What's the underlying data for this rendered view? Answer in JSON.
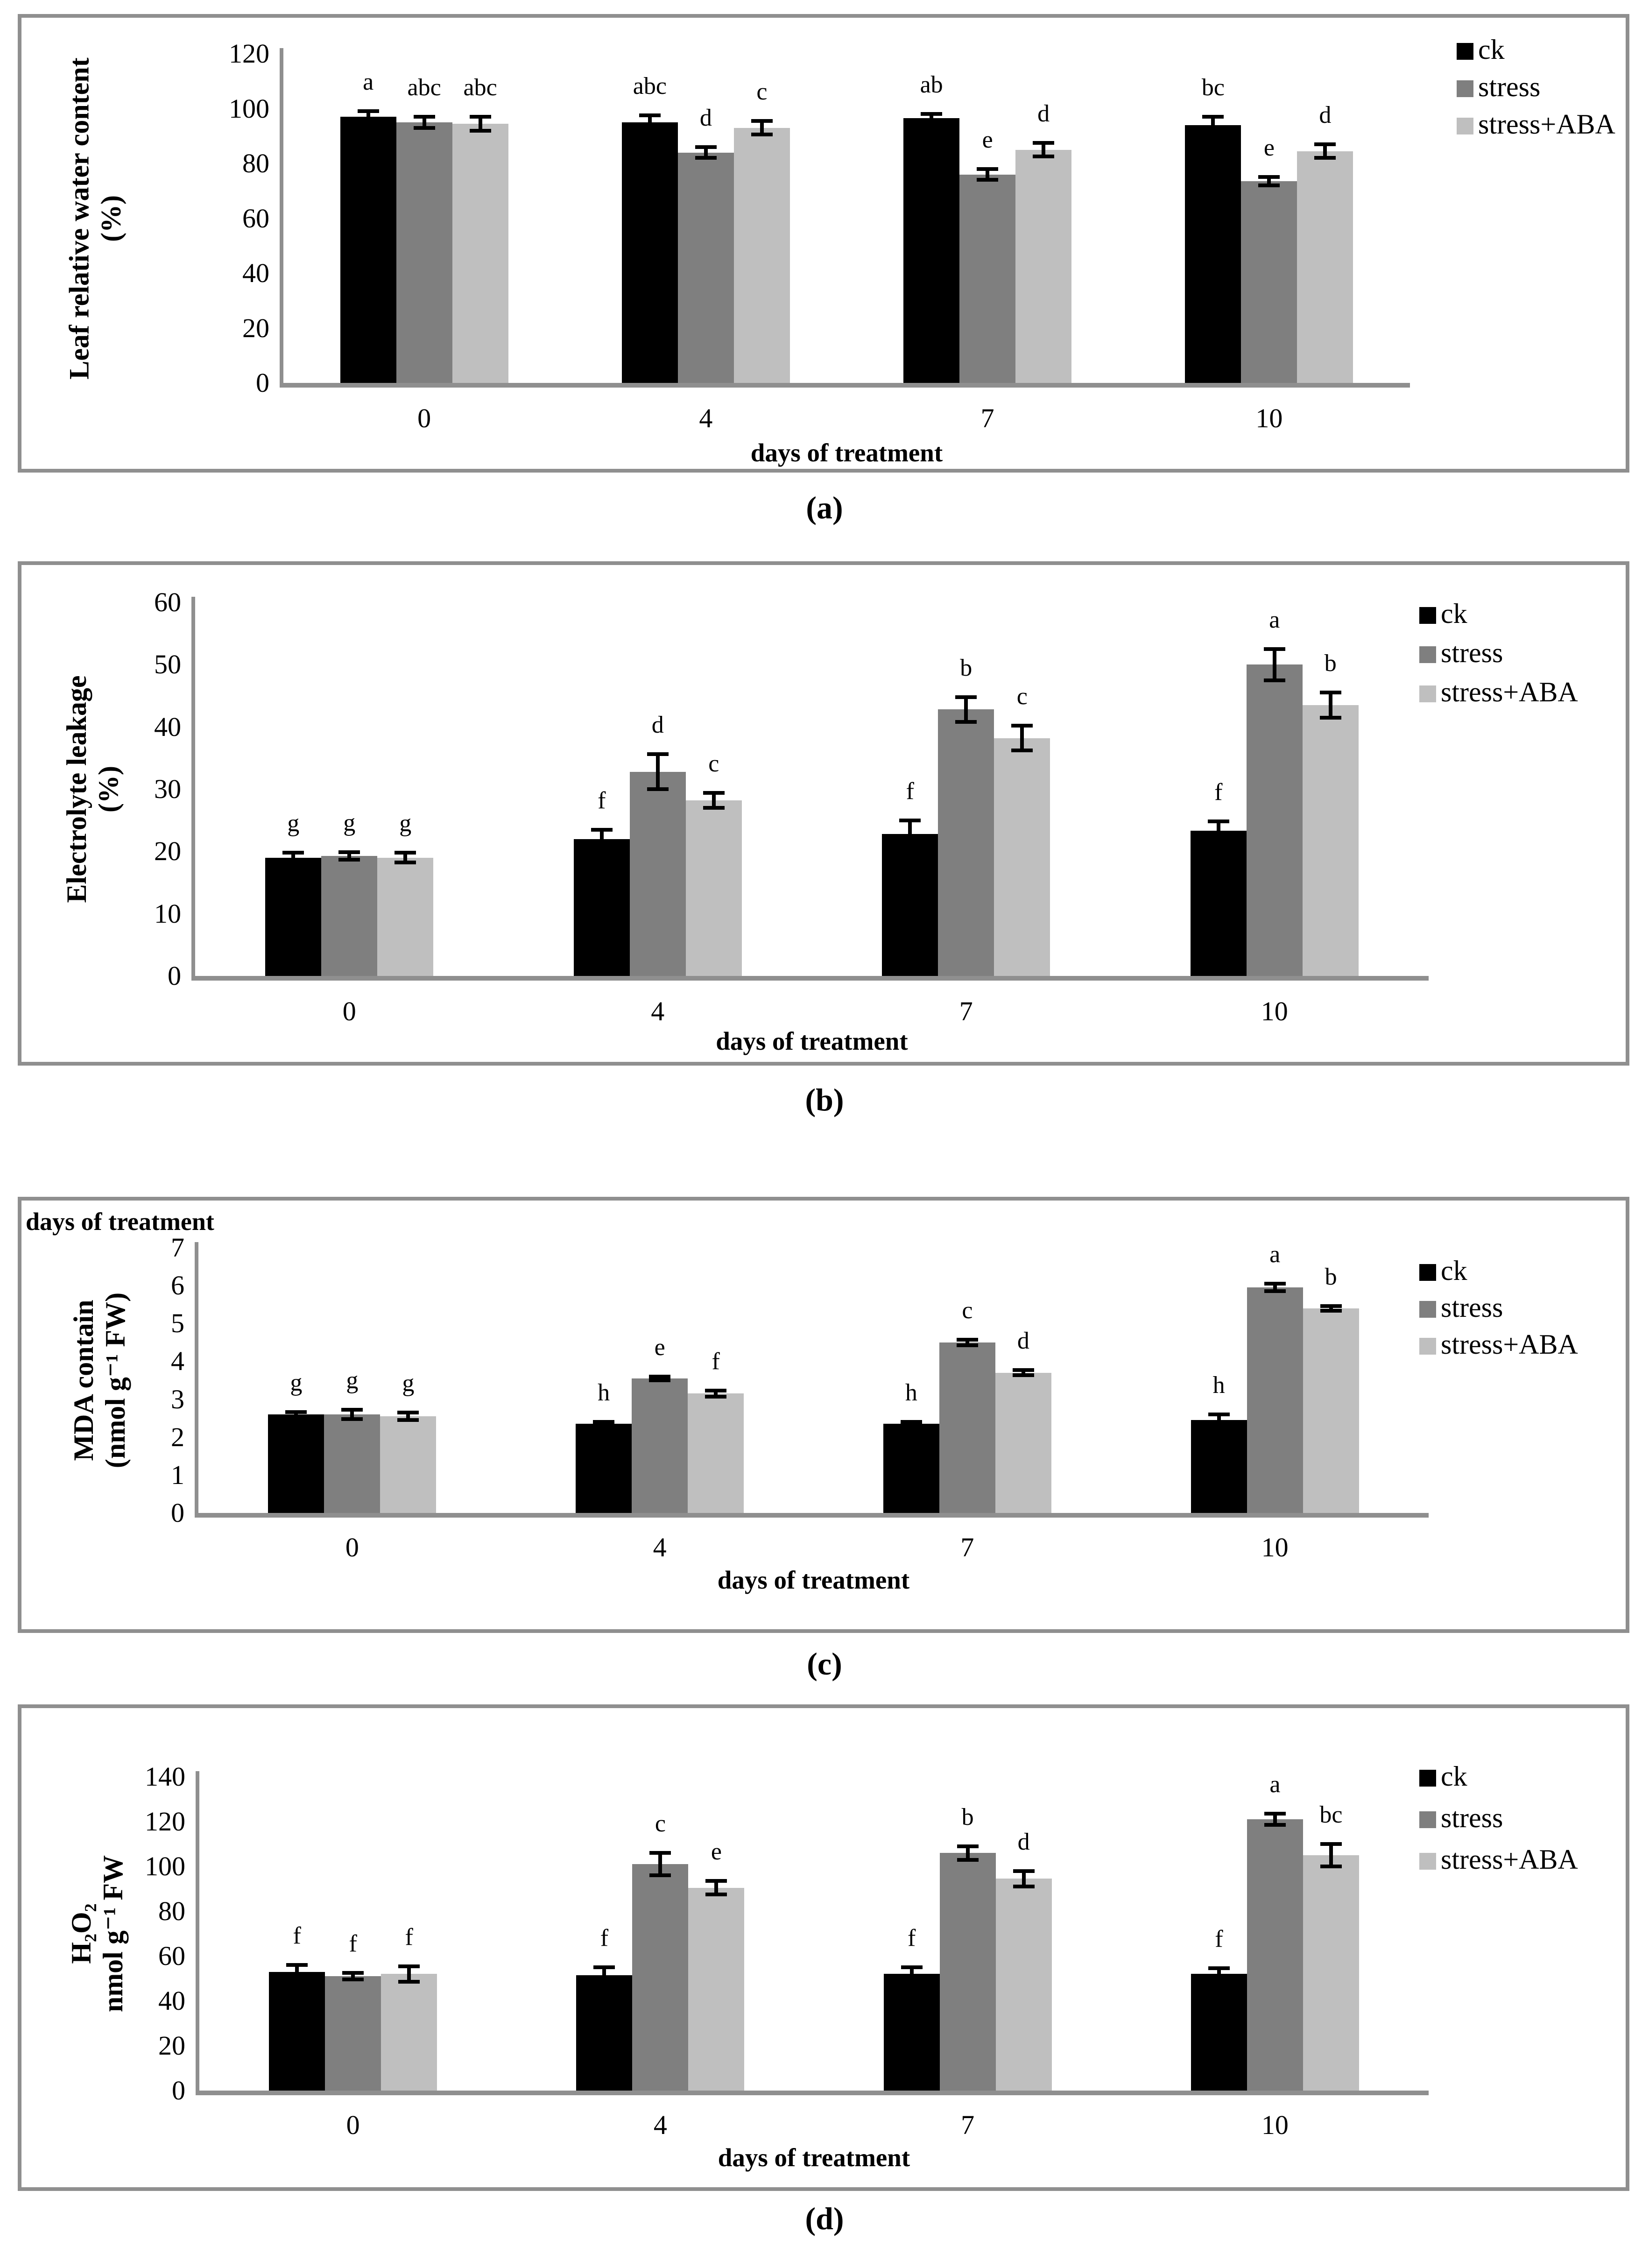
{
  "figure": {
    "background": "#ffffff",
    "border_color": "#8f8f8f",
    "axis_color": "#8f8f8f",
    "error_bar_color": "#000000"
  },
  "legend_labels": [
    "ck",
    "stress",
    "stress+ABA"
  ],
  "series_colors": {
    "ck": "#000000",
    "stress": "#7f7f7f",
    "stress+ABA": "#bfbfbf"
  },
  "chart_data": [
    {
      "id": "a",
      "type": "bar",
      "caption": "(a)",
      "ylabel_lines": [
        "Leaf  relative water content",
        "(%)"
      ],
      "xlabel": "days of treatment",
      "categories": [
        "0",
        "4",
        "7",
        "10"
      ],
      "ylim": [
        0,
        120
      ],
      "ytick_step": 20,
      "grid": false,
      "legend_position": "top-right",
      "series": [
        {
          "name": "ck",
          "color": "#000000",
          "values": [
            97,
            95,
            96.5,
            94
          ],
          "errors": [
            2,
            2.5,
            1.5,
            3
          ],
          "letters": [
            "a",
            "abc",
            "ab",
            "bc"
          ]
        },
        {
          "name": "stress",
          "color": "#7f7f7f",
          "values": [
            95,
            84,
            76,
            73.5
          ],
          "errors": [
            2,
            2,
            2,
            1.5
          ],
          "letters": [
            "abc",
            "d",
            "e",
            "e"
          ]
        },
        {
          "name": "stress+ABA",
          "color": "#bfbfbf",
          "values": [
            94.5,
            93,
            85,
            84.5
          ],
          "errors": [
            2.5,
            2.5,
            2.5,
            2.5
          ],
          "letters": [
            "abc",
            "c",
            "d",
            "d"
          ]
        }
      ]
    },
    {
      "id": "b",
      "type": "bar",
      "caption": "(b)",
      "ylabel_lines": [
        "Electrolyte leakage",
        "(%)"
      ],
      "xlabel": "days of treatment",
      "categories": [
        "0",
        "4",
        "7",
        "10"
      ],
      "ylim": [
        0,
        60
      ],
      "ytick_step": 10,
      "grid": false,
      "legend_position": "top-right",
      "series": [
        {
          "name": "ck",
          "color": "#000000",
          "values": [
            19,
            22,
            22.8,
            23.3
          ],
          "errors": [
            0.8,
            1.5,
            2.2,
            1.5
          ],
          "letters": [
            "g",
            "f",
            "f",
            "f"
          ]
        },
        {
          "name": "stress",
          "color": "#7f7f7f",
          "values": [
            19.3,
            32.8,
            42.8,
            50
          ],
          "errors": [
            0.6,
            2.8,
            2,
            2.5
          ],
          "letters": [
            "g",
            "d",
            "b",
            "a"
          ]
        },
        {
          "name": "stress+ABA",
          "color": "#bfbfbf",
          "values": [
            19,
            28.2,
            38.2,
            43.5
          ],
          "errors": [
            0.8,
            1.2,
            2,
            2
          ],
          "letters": [
            "g",
            "c",
            "c",
            "b"
          ]
        }
      ]
    },
    {
      "id": "c",
      "type": "bar",
      "caption": "(c)",
      "corner_label": "days of treatment",
      "ylabel_lines": [
        "MDA contain",
        "(nmol g⁻¹ FW)"
      ],
      "xlabel": "days of treatment",
      "categories": [
        "0",
        "4",
        "7",
        "10"
      ],
      "ylim": [
        0,
        7
      ],
      "ytick_step": 1,
      "grid": false,
      "legend_position": "top-right",
      "series": [
        {
          "name": "ck",
          "color": "#000000",
          "values": [
            2.6,
            2.35,
            2.35,
            2.45
          ],
          "errors": [
            0.06,
            0.05,
            0.05,
            0.15
          ],
          "letters": [
            "g",
            "h",
            "h",
            "h"
          ]
        },
        {
          "name": "stress",
          "color": "#7f7f7f",
          "values": [
            2.6,
            3.55,
            4.5,
            5.95
          ],
          "errors": [
            0.12,
            0.05,
            0.07,
            0.1
          ],
          "letters": [
            "g",
            "e",
            "c",
            "a"
          ]
        },
        {
          "name": "stress+ABA",
          "color": "#bfbfbf",
          "values": [
            2.55,
            3.15,
            3.7,
            5.4
          ],
          "errors": [
            0.1,
            0.08,
            0.07,
            0.06
          ],
          "letters": [
            "g",
            "f",
            "d",
            "b"
          ]
        }
      ]
    },
    {
      "id": "d",
      "type": "bar",
      "caption": "(d)",
      "ylabel_lines": [
        "H₂O₂",
        "nmol g⁻¹ FW"
      ],
      "xlabel": "days of treatment",
      "categories": [
        "0",
        "4",
        "7",
        "10"
      ],
      "ylim": [
        0,
        140
      ],
      "ytick_step": 20,
      "grid": false,
      "legend_position": "top-right",
      "series": [
        {
          "name": "ck",
          "color": "#000000",
          "values": [
            53,
            51.5,
            52,
            52
          ],
          "errors": [
            3,
            3.5,
            3,
            2.5
          ],
          "letters": [
            "f",
            "f",
            "f",
            "f"
          ]
        },
        {
          "name": "stress",
          "color": "#7f7f7f",
          "values": [
            51,
            101,
            106,
            121
          ],
          "errors": [
            1.5,
            5,
            3,
            2.5
          ],
          "letters": [
            "f",
            "c",
            "b",
            "a"
          ]
        },
        {
          "name": "stress+ABA",
          "color": "#bfbfbf",
          "values": [
            52,
            90.5,
            94.5,
            105
          ],
          "errors": [
            3.5,
            3,
            3.5,
            5
          ],
          "letters": [
            "f",
            "e",
            "d",
            "bc"
          ]
        }
      ]
    }
  ]
}
